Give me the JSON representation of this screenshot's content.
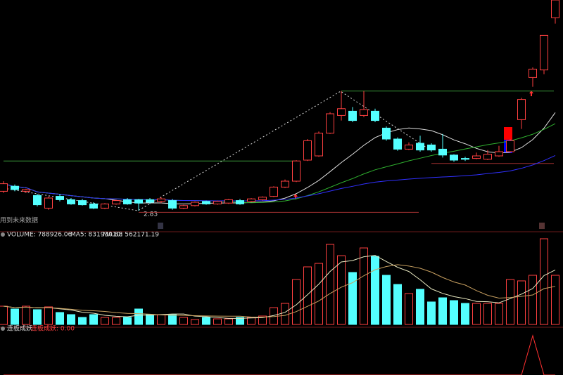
{
  "chart_data": {
    "type": "candlestick",
    "annotation_top": "用到未来数据",
    "low_label": "2.83",
    "ylim": [
      2.58,
      5.33
    ],
    "up_color": "#ff4040",
    "down_color": "#54ffff",
    "ma_lines": [
      {
        "period": 10,
        "color": "#e0e0e0"
      },
      {
        "period": 20,
        "color": "#2fb02f"
      },
      {
        "period": 40,
        "color": "#3030ff"
      }
    ],
    "levels": [
      {
        "price": 4.25,
        "color": "#3a9a3a",
        "from": 30,
        "to": 49
      },
      {
        "price": 3.42,
        "color": "#3a9a3a",
        "from": 0,
        "to": 26
      },
      {
        "price": 3.39,
        "color": "#a03030",
        "from": 38,
        "to": 49
      },
      {
        "price": 2.81,
        "color": "#a03030",
        "from": 12,
        "to": 37
      }
    ],
    "open": [
      3.06,
      3.12,
      3.06,
      3.01,
      2.86,
      3.0,
      2.96,
      2.95,
      2.91,
      2.86,
      2.91,
      2.96,
      2.96,
      2.96,
      2.94,
      2.95,
      2.86,
      2.89,
      2.94,
      2.91,
      2.92,
      2.95,
      2.94,
      2.96,
      3.0,
      3.11,
      3.18,
      3.43,
      3.48,
      3.75,
      3.96,
      4.01,
      3.96,
      4.01,
      3.81,
      3.68,
      3.56,
      3.63,
      3.61,
      3.56,
      3.49,
      3.45,
      3.45,
      3.44,
      3.48,
      3.53,
      3.91,
      4.41,
      4.5,
      5.12
    ],
    "high": [
      3.18,
      3.14,
      3.09,
      3.03,
      3.0,
      3.03,
      2.98,
      2.97,
      2.93,
      2.92,
      2.96,
      2.98,
      2.97,
      2.98,
      2.99,
      2.97,
      2.9,
      2.94,
      2.95,
      2.95,
      2.97,
      2.97,
      2.98,
      3.0,
      3.12,
      3.2,
      3.43,
      3.68,
      3.77,
      4.0,
      4.25,
      4.06,
      4.25,
      4.04,
      3.83,
      3.7,
      3.64,
      3.72,
      3.63,
      3.74,
      3.5,
      3.47,
      3.52,
      3.55,
      3.6,
      3.68,
      4.17,
      4.53,
      4.91,
      5.33
    ],
    "low": [
      3.04,
      3.06,
      3.04,
      2.88,
      2.84,
      2.94,
      2.9,
      2.89,
      2.85,
      2.85,
      2.9,
      2.9,
      2.83,
      2.91,
      2.92,
      2.84,
      2.85,
      2.88,
      2.9,
      2.9,
      2.91,
      2.9,
      2.93,
      2.95,
      2.99,
      3.1,
      3.17,
      3.42,
      3.47,
      3.74,
      3.9,
      3.88,
      3.94,
      3.88,
      3.66,
      3.54,
      3.55,
      3.53,
      3.53,
      3.46,
      3.41,
      3.42,
      3.44,
      3.43,
      3.47,
      3.52,
      3.8,
      4.3,
      4.45,
      5.05
    ],
    "close": [
      3.15,
      3.08,
      3.08,
      2.9,
      2.98,
      2.96,
      2.91,
      2.9,
      2.86,
      2.91,
      2.95,
      2.91,
      2.92,
      2.93,
      2.97,
      2.86,
      2.89,
      2.93,
      2.91,
      2.94,
      2.96,
      2.91,
      2.97,
      2.99,
      3.11,
      3.18,
      3.42,
      3.66,
      3.75,
      3.98,
      4.04,
      3.9,
      4.03,
      3.9,
      3.68,
      3.56,
      3.61,
      3.55,
      3.55,
      3.49,
      3.43,
      3.44,
      3.48,
      3.5,
      3.53,
      3.66,
      4.15,
      4.51,
      4.91,
      5.33
    ],
    "volume_label": "VOLUME: 788926.06",
    "volume_ma5_label": "MA5: 831930.88",
    "volume_ma10_label": "MA10: 562171.19",
    "volume_ylim": [
      0,
      1375000
    ],
    "volume_ma": [
      {
        "period": 5,
        "color": "#e8e8c0"
      },
      {
        "period": 10,
        "color": "#c8a060"
      }
    ],
    "volume": [
      293000,
      248000,
      293000,
      237000,
      282000,
      192000,
      158000,
      113000,
      158000,
      113000,
      113000,
      113000,
      248000,
      158000,
      158000,
      158000,
      113000,
      79000,
      113000,
      90000,
      90000,
      113000,
      113000,
      135000,
      270000,
      338000,
      721000,
      924000,
      980000,
      1285000,
      1104000,
      834000,
      1228000,
      1093000,
      789000,
      642000,
      496000,
      564000,
      361000,
      428000,
      383000,
      338000,
      338000,
      338000,
      338000,
      721000,
      699000,
      789000,
      1375000,
      788926.06
    ],
    "indicator_title": "连板成妖",
    "indicator_value_label": "连板成妖: 0.00",
    "indicator_ylim": [
      0,
      1
    ],
    "indicator": [
      0,
      0,
      0,
      0,
      0,
      0,
      0,
      0,
      0,
      0,
      0,
      0,
      0,
      0,
      0,
      0,
      0,
      0,
      0,
      0,
      0,
      0,
      0,
      0,
      0,
      0,
      0,
      0,
      0,
      0,
      0,
      0,
      0,
      0,
      0,
      0,
      0,
      0,
      0,
      0,
      0,
      0,
      0,
      0,
      0,
      0,
      0,
      1,
      0,
      0
    ]
  }
}
